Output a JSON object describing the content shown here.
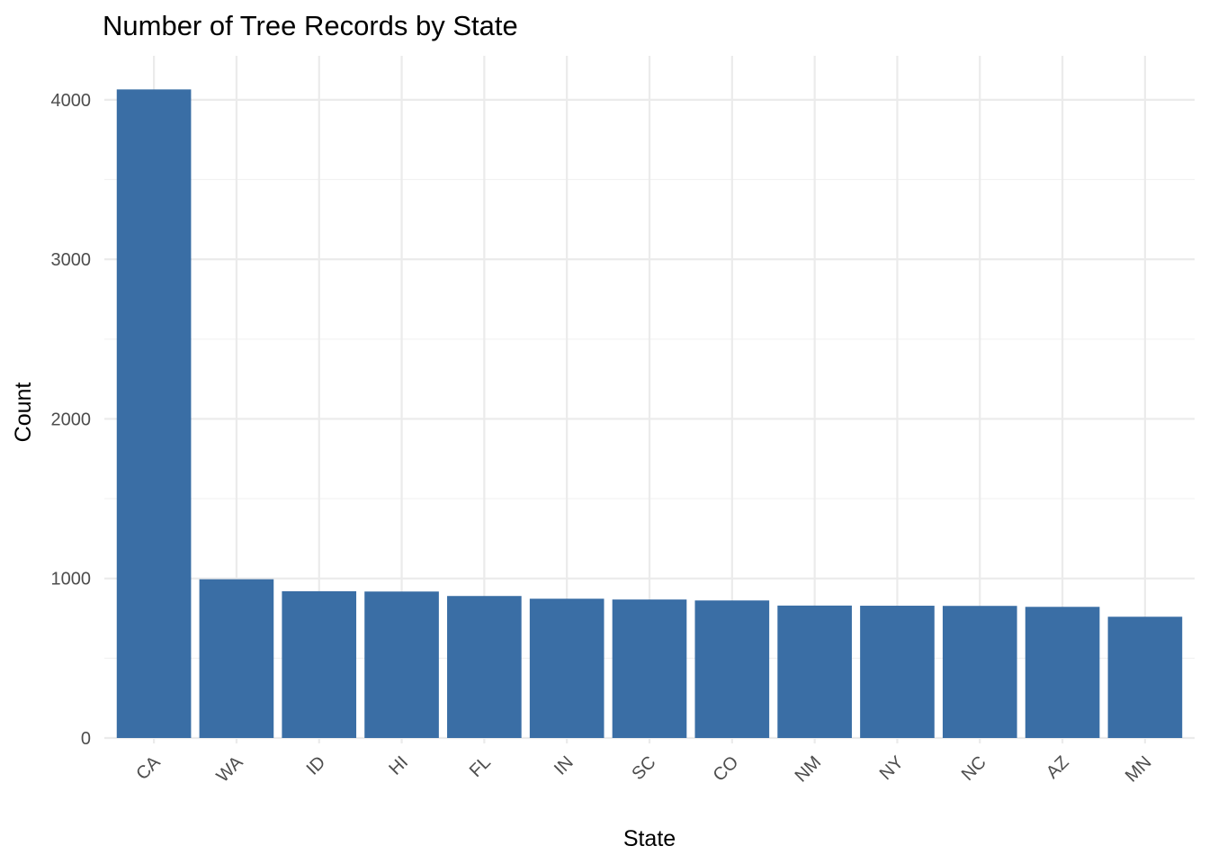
{
  "chart_data": {
    "type": "bar",
    "title": "Number of Tree Records by State",
    "xlabel": "State",
    "ylabel": "Count",
    "categories": [
      "CA",
      "WA",
      "ID",
      "HI",
      "FL",
      "IN",
      "SC",
      "CO",
      "NM",
      "NY",
      "NC",
      "AZ",
      "MN"
    ],
    "values": [
      4065,
      995,
      920,
      918,
      890,
      873,
      868,
      862,
      830,
      829,
      828,
      822,
      760
    ],
    "ylim": [
      0,
      4270
    ],
    "y_ticks": [
      0,
      1000,
      2000,
      3000,
      4000
    ],
    "y_minor_ticks": [
      500,
      1500,
      2500,
      3500
    ],
    "grid": true,
    "legend": "none",
    "colors": {
      "bar": "#3a6ea5",
      "grid_major": "#ebebeb",
      "grid_minor": "#f2f2f2",
      "tick_text": "#4d4d4d"
    }
  }
}
